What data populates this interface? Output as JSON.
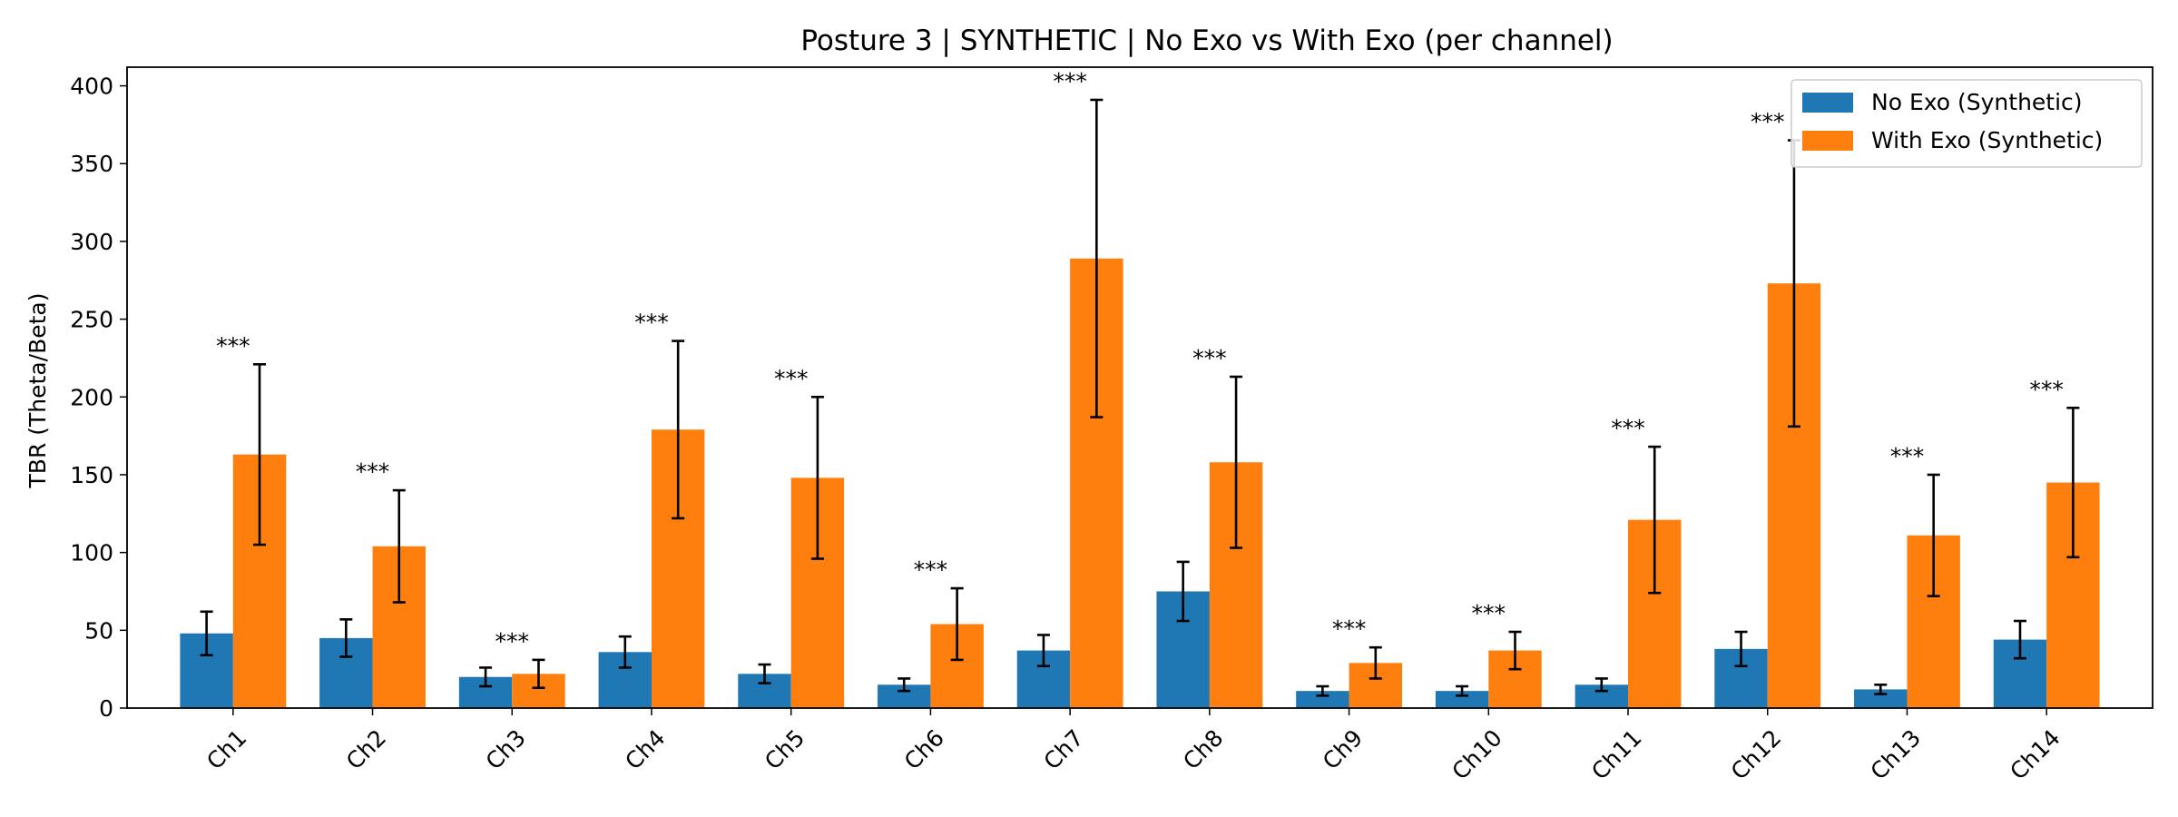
{
  "chart_data": {
    "type": "bar",
    "title": "Posture 3 | SYNTHETIC | No Exo vs With Exo (per channel)",
    "xlabel": "",
    "ylabel": "TBR (Theta/Beta)",
    "ylim": [
      0,
      412
    ],
    "yticks": [
      0,
      50,
      100,
      150,
      200,
      250,
      300,
      350,
      400
    ],
    "categories": [
      "Ch1",
      "Ch2",
      "Ch3",
      "Ch4",
      "Ch5",
      "Ch6",
      "Ch7",
      "Ch8",
      "Ch9",
      "Ch10",
      "Ch11",
      "Ch12",
      "Ch13",
      "Ch14"
    ],
    "series": [
      {
        "name": "No Exo (Synthetic)",
        "color": "#1f77b4",
        "values": [
          48,
          45,
          20,
          36,
          22,
          15,
          37,
          75,
          11,
          11,
          15,
          38,
          12,
          44
        ],
        "errors": [
          14,
          12,
          6,
          10,
          6,
          4,
          10,
          19,
          3,
          3,
          4,
          11,
          3,
          12
        ]
      },
      {
        "name": "With Exo (Synthetic)",
        "color": "#ff7f0e",
        "values": [
          163,
          104,
          22,
          179,
          148,
          54,
          289,
          158,
          29,
          37,
          121,
          273,
          111,
          145
        ],
        "errors": [
          58,
          36,
          9,
          57,
          52,
          23,
          102,
          55,
          10,
          12,
          47,
          92,
          39,
          48
        ]
      }
    ],
    "annotations": [
      "***",
      "***",
      "***",
      "***",
      "***",
      "***",
      "***",
      "***",
      "***",
      "***",
      "***",
      "***",
      "***",
      "***"
    ],
    "legend_position": "top-right",
    "grid": false
  }
}
